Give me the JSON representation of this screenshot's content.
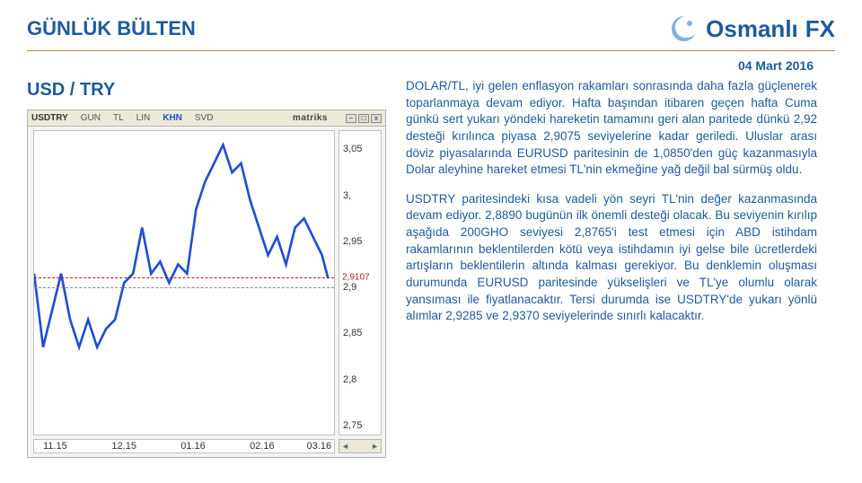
{
  "header": {
    "title": "GÜNLÜK BÜLTEN",
    "brand_name": "Osmanlı",
    "brand_suffix": "FX"
  },
  "date": "04 Mart 2016",
  "subheader": "USD / TRY",
  "chart": {
    "toolbar": {
      "symbol": "USDTRY",
      "labels": [
        "GUN",
        "TL",
        "LIN"
      ],
      "khn": "KHN",
      "svd": "SVD",
      "brand": "matriks",
      "minimize": "−",
      "maximize": "□",
      "close": "x"
    },
    "ylim_min": 2.74,
    "ylim_max": 3.07,
    "ylabels": [
      {
        "v": 3.05,
        "t": "3,05"
      },
      {
        "v": 3.0,
        "t": "3,"
      },
      {
        "v": 2.95,
        "t": "2,95"
      },
      {
        "v": 2.9,
        "t": "2,9"
      },
      {
        "v": 2.85,
        "t": "2,85"
      },
      {
        "v": 2.8,
        "t": "2,8"
      },
      {
        "v": 2.75,
        "t": "2,75"
      }
    ],
    "marker": {
      "v": 2.9107,
      "t": "2,9107"
    },
    "xlabels": [
      {
        "p": 0.07,
        "t": "11.15"
      },
      {
        "p": 0.3,
        "t": "12.15"
      },
      {
        "p": 0.53,
        "t": "01.16"
      },
      {
        "p": 0.76,
        "t": "02.16"
      },
      {
        "p": 0.95,
        "t": "03.16"
      }
    ],
    "line_color": "#2050d0",
    "hline_color": "#a02020",
    "series": [
      {
        "x": 0.0,
        "y": 2.915
      },
      {
        "x": 0.03,
        "y": 2.835
      },
      {
        "x": 0.06,
        "y": 2.875
      },
      {
        "x": 0.09,
        "y": 2.915
      },
      {
        "x": 0.12,
        "y": 2.865
      },
      {
        "x": 0.15,
        "y": 2.835
      },
      {
        "x": 0.18,
        "y": 2.865
      },
      {
        "x": 0.21,
        "y": 2.835
      },
      {
        "x": 0.24,
        "y": 2.855
      },
      {
        "x": 0.27,
        "y": 2.865
      },
      {
        "x": 0.3,
        "y": 2.905
      },
      {
        "x": 0.33,
        "y": 2.915
      },
      {
        "x": 0.36,
        "y": 2.965
      },
      {
        "x": 0.39,
        "y": 2.915
      },
      {
        "x": 0.42,
        "y": 2.928
      },
      {
        "x": 0.45,
        "y": 2.905
      },
      {
        "x": 0.48,
        "y": 2.925
      },
      {
        "x": 0.51,
        "y": 2.915
      },
      {
        "x": 0.54,
        "y": 2.985
      },
      {
        "x": 0.57,
        "y": 3.015
      },
      {
        "x": 0.6,
        "y": 3.035
      },
      {
        "x": 0.63,
        "y": 3.055
      },
      {
        "x": 0.66,
        "y": 3.025
      },
      {
        "x": 0.69,
        "y": 3.035
      },
      {
        "x": 0.72,
        "y": 2.995
      },
      {
        "x": 0.75,
        "y": 2.965
      },
      {
        "x": 0.78,
        "y": 2.935
      },
      {
        "x": 0.81,
        "y": 2.955
      },
      {
        "x": 0.84,
        "y": 2.925
      },
      {
        "x": 0.87,
        "y": 2.965
      },
      {
        "x": 0.9,
        "y": 2.975
      },
      {
        "x": 0.93,
        "y": 2.955
      },
      {
        "x": 0.96,
        "y": 2.935
      },
      {
        "x": 0.98,
        "y": 2.91
      }
    ]
  },
  "paragraphs": {
    "p1": "DOLAR/TL, iyi gelen enflasyon rakamları sonrasında daha fazla güçlenerek toparlanmaya devam ediyor. Hafta başından itibaren geçen hafta Cuma günkü sert yukarı yöndeki hareketin tamamını geri alan paritede dünkü 2,92 desteği kırılınca piyasa 2,9075 seviyelerine kadar geriledi. Uluslar arası döviz piyasalarında EURUSD paritesinin de 1,0850'den güç kazanmasıyla Dolar aleyhine hareket etmesi TL'nin ekmeğine yağ değil bal sürmüş oldu.",
    "p2": "USDTRY paritesindeki kısa vadeli yön seyri TL'nin değer kazanmasında devam ediyor. 2,8890 bugünün ilk önemli desteği olacak. Bu seviyenin kırılıp aşağıda 200GHO seviyesi 2,8765'i test etmesi için ABD istihdam rakamlarının beklentilerden kötü veya istihdamın iyi gelse bile ücretlerdeki artışların beklentilerin altında kalması gerekiyor. Bu denklemin oluşması durumunda EURUSD paritesinde yükselişleri ve TL'ye olumlu olarak yansıması ile fiyatlanacaktır. Tersi durumda ise USDTRY'de yukarı yönlü alımlar 2,9285 ve 2,9370 seviyelerinde sınırlı kalacaktır."
  }
}
